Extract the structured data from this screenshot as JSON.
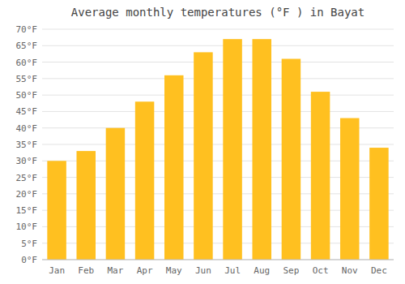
{
  "chart_data": {
    "type": "bar",
    "title": "Average monthly temperatures (°F ) in Bayat",
    "categories": [
      "Jan",
      "Feb",
      "Mar",
      "Apr",
      "May",
      "Jun",
      "Jul",
      "Aug",
      "Sep",
      "Oct",
      "Nov",
      "Dec"
    ],
    "values": [
      30,
      33,
      40,
      48,
      56,
      63,
      67,
      67,
      61,
      51,
      43,
      34
    ],
    "color": "#FFC020",
    "ylim": [
      0,
      70
    ],
    "yticks": [
      {
        "value": 0,
        "label": "0°F"
      },
      {
        "value": 5,
        "label": "5°F"
      },
      {
        "value": 10,
        "label": "10°F"
      },
      {
        "value": 15,
        "label": "15°F"
      },
      {
        "value": 20,
        "label": "20°F"
      },
      {
        "value": 25,
        "label": "25°F"
      },
      {
        "value": 30,
        "label": "30°F"
      },
      {
        "value": 35,
        "label": "35°F"
      },
      {
        "value": 40,
        "label": "40°F"
      },
      {
        "value": 45,
        "label": "45°F"
      },
      {
        "value": 50,
        "label": "50°F"
      },
      {
        "value": 55,
        "label": "55°F"
      },
      {
        "value": 60,
        "label": "60°F"
      },
      {
        "value": 65,
        "label": "65°F"
      },
      {
        "value": 70,
        "label": "70°F"
      }
    ],
    "grid": true
  }
}
